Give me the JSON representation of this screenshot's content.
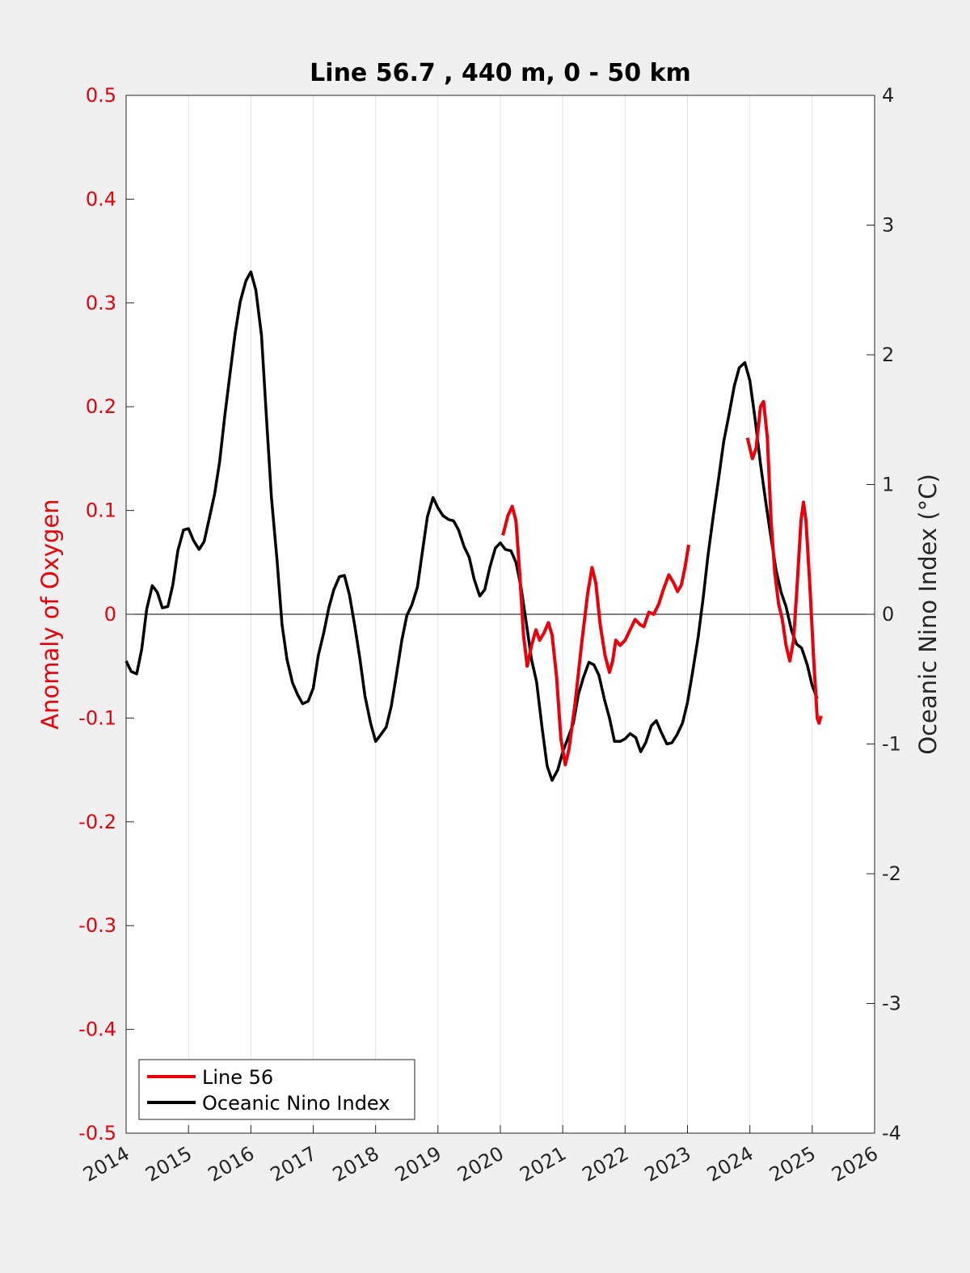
{
  "chart_data": {
    "type": "line",
    "title": "Line 56.7 , 440 m, 0 - 50 km",
    "ylabel_left": "Anomaly of Oxygen",
    "ylabel_right": "Oceanic Nino Index (°C)",
    "xlabel": "",
    "xlim": [
      2014,
      2026
    ],
    "xticks": [
      "2014",
      "2015",
      "2016",
      "2017",
      "2018",
      "2019",
      "2020",
      "2021",
      "2022",
      "2023",
      "2024",
      "2025",
      "2026"
    ],
    "ylim_left": [
      -0.5,
      0.5
    ],
    "yticks_left": [
      "0.5",
      "0.4",
      "0.3",
      "0.2",
      "0.1",
      "0",
      "-0.1",
      "-0.2",
      "-0.3",
      "-0.4",
      "-0.5"
    ],
    "ylim_right": [
      -4,
      4
    ],
    "yticks_right": [
      "4",
      "3",
      "2",
      "1",
      "0",
      "-1",
      "-2",
      "-3",
      "-4"
    ],
    "grid": "vertical",
    "legend_position": "bottom-left",
    "colors": {
      "line56": "#e8000b",
      "oni": "#000000",
      "left_axis": "#e8000b",
      "right_axis": "#262626",
      "background": "#f0f0f0",
      "plot": "#ffffff"
    },
    "series": [
      {
        "name": "Line 56",
        "axis": "left",
        "color": "#e8000b",
        "segments": [
          [
            [
              2020.04,
              0.076
            ],
            [
              2020.12,
              0.095
            ],
            [
              2020.19,
              0.104
            ],
            [
              2020.25,
              0.09
            ],
            [
              2020.31,
              0.04
            ],
            [
              2020.37,
              -0.02
            ],
            [
              2020.43,
              -0.05
            ],
            [
              2020.5,
              -0.03
            ],
            [
              2020.57,
              -0.015
            ],
            [
              2020.63,
              -0.025
            ],
            [
              2020.7,
              -0.018
            ],
            [
              2020.77,
              -0.008
            ],
            [
              2020.83,
              -0.02
            ],
            [
              2020.9,
              -0.06
            ],
            [
              2020.97,
              -0.12
            ],
            [
              2021.04,
              -0.145
            ],
            [
              2021.1,
              -0.13
            ],
            [
              2021.2,
              -0.085
            ],
            [
              2021.3,
              -0.03
            ],
            [
              2021.4,
              0.02
            ],
            [
              2021.47,
              0.045
            ],
            [
              2021.53,
              0.03
            ],
            [
              2021.6,
              -0.01
            ],
            [
              2021.68,
              -0.04
            ],
            [
              2021.75,
              -0.056
            ],
            [
              2021.8,
              -0.045
            ],
            [
              2021.85,
              -0.025
            ],
            [
              2021.92,
              -0.03
            ],
            [
              2022.0,
              -0.025
            ],
            [
              2022.08,
              -0.015
            ],
            [
              2022.16,
              -0.005
            ],
            [
              2022.24,
              -0.01
            ],
            [
              2022.3,
              -0.012
            ],
            [
              2022.38,
              0.002
            ],
            [
              2022.46,
              0.0
            ],
            [
              2022.54,
              0.01
            ],
            [
              2022.62,
              0.025
            ],
            [
              2022.7,
              0.038
            ],
            [
              2022.78,
              0.03
            ],
            [
              2022.84,
              0.022
            ],
            [
              2022.9,
              0.028
            ],
            [
              2022.96,
              0.045
            ],
            [
              2023.02,
              0.067
            ]
          ],
          [
            [
              2023.96,
              0.17
            ],
            [
              2024.04,
              0.15
            ],
            [
              2024.1,
              0.16
            ],
            [
              2024.17,
              0.2
            ],
            [
              2024.22,
              0.205
            ],
            [
              2024.28,
              0.17
            ],
            [
              2024.34,
              0.09
            ],
            [
              2024.4,
              0.04
            ],
            [
              2024.46,
              0.01
            ],
            [
              2024.52,
              -0.005
            ],
            [
              2024.58,
              -0.03
            ],
            [
              2024.64,
              -0.045
            ],
            [
              2024.7,
              -0.025
            ],
            [
              2024.76,
              0.03
            ],
            [
              2024.82,
              0.09
            ],
            [
              2024.86,
              0.108
            ],
            [
              2024.9,
              0.09
            ],
            [
              2024.96,
              0.03
            ],
            [
              2025.02,
              -0.04
            ],
            [
              2025.08,
              -0.1
            ],
            [
              2025.11,
              -0.105
            ],
            [
              2025.14,
              -0.098
            ]
          ]
        ]
      },
      {
        "name": "Oceanic Nino Index",
        "axis": "right",
        "color": "#000000",
        "points": [
          [
            2014.0,
            -0.36
          ],
          [
            2014.08,
            -0.44
          ],
          [
            2014.17,
            -0.46
          ],
          [
            2014.25,
            -0.27
          ],
          [
            2014.33,
            0.04
          ],
          [
            2014.42,
            0.22
          ],
          [
            2014.5,
            0.17
          ],
          [
            2014.58,
            0.05
          ],
          [
            2014.67,
            0.06
          ],
          [
            2014.75,
            0.23
          ],
          [
            2014.83,
            0.49
          ],
          [
            2014.92,
            0.65
          ],
          [
            2015.0,
            0.66
          ],
          [
            2015.08,
            0.57
          ],
          [
            2015.17,
            0.5
          ],
          [
            2015.25,
            0.56
          ],
          [
            2015.33,
            0.73
          ],
          [
            2015.42,
            0.93
          ],
          [
            2015.5,
            1.18
          ],
          [
            2015.58,
            1.52
          ],
          [
            2015.67,
            1.87
          ],
          [
            2015.75,
            2.17
          ],
          [
            2015.83,
            2.41
          ],
          [
            2015.92,
            2.57
          ],
          [
            2016.0,
            2.64
          ],
          [
            2016.08,
            2.5
          ],
          [
            2016.17,
            2.15
          ],
          [
            2016.25,
            1.52
          ],
          [
            2016.33,
            0.9
          ],
          [
            2016.42,
            0.42
          ],
          [
            2016.5,
            -0.08
          ],
          [
            2016.58,
            -0.35
          ],
          [
            2016.67,
            -0.53
          ],
          [
            2016.75,
            -0.62
          ],
          [
            2016.83,
            -0.69
          ],
          [
            2016.92,
            -0.67
          ],
          [
            2017.0,
            -0.57
          ],
          [
            2017.08,
            -0.32
          ],
          [
            2017.17,
            -0.14
          ],
          [
            2017.25,
            0.05
          ],
          [
            2017.33,
            0.19
          ],
          [
            2017.42,
            0.29
          ],
          [
            2017.5,
            0.3
          ],
          [
            2017.58,
            0.15
          ],
          [
            2017.67,
            -0.1
          ],
          [
            2017.75,
            -0.35
          ],
          [
            2017.83,
            -0.63
          ],
          [
            2017.92,
            -0.84
          ],
          [
            2018.0,
            -0.98
          ],
          [
            2018.08,
            -0.93
          ],
          [
            2018.17,
            -0.87
          ],
          [
            2018.25,
            -0.71
          ],
          [
            2018.33,
            -0.48
          ],
          [
            2018.42,
            -0.2
          ],
          [
            2018.5,
            -0.01
          ],
          [
            2018.58,
            0.07
          ],
          [
            2018.67,
            0.21
          ],
          [
            2018.75,
            0.48
          ],
          [
            2018.83,
            0.75
          ],
          [
            2018.92,
            0.9
          ],
          [
            2019.0,
            0.82
          ],
          [
            2019.08,
            0.76
          ],
          [
            2019.17,
            0.73
          ],
          [
            2019.25,
            0.72
          ],
          [
            2019.33,
            0.65
          ],
          [
            2019.42,
            0.52
          ],
          [
            2019.5,
            0.44
          ],
          [
            2019.58,
            0.27
          ],
          [
            2019.67,
            0.14
          ],
          [
            2019.75,
            0.19
          ],
          [
            2019.83,
            0.36
          ],
          [
            2019.92,
            0.51
          ],
          [
            2020.0,
            0.55
          ],
          [
            2020.08,
            0.5
          ],
          [
            2020.17,
            0.49
          ],
          [
            2020.25,
            0.4
          ],
          [
            2020.33,
            0.21
          ],
          [
            2020.42,
            -0.08
          ],
          [
            2020.5,
            -0.35
          ],
          [
            2020.58,
            -0.52
          ],
          [
            2020.67,
            -0.88
          ],
          [
            2020.75,
            -1.17
          ],
          [
            2020.83,
            -1.28
          ],
          [
            2020.92,
            -1.2
          ],
          [
            2021.0,
            -1.06
          ],
          [
            2021.08,
            -0.96
          ],
          [
            2021.17,
            -0.84
          ],
          [
            2021.25,
            -0.62
          ],
          [
            2021.33,
            -0.49
          ],
          [
            2021.42,
            -0.37
          ],
          [
            2021.5,
            -0.39
          ],
          [
            2021.58,
            -0.47
          ],
          [
            2021.67,
            -0.66
          ],
          [
            2021.75,
            -0.8
          ],
          [
            2021.83,
            -0.98
          ],
          [
            2021.92,
            -0.98
          ],
          [
            2022.0,
            -0.96
          ],
          [
            2022.08,
            -0.92
          ],
          [
            2022.17,
            -0.95
          ],
          [
            2022.25,
            -1.06
          ],
          [
            2022.33,
            -0.99
          ],
          [
            2022.42,
            -0.86
          ],
          [
            2022.5,
            -0.82
          ],
          [
            2022.58,
            -0.91
          ],
          [
            2022.67,
            -1.0
          ],
          [
            2022.75,
            -0.99
          ],
          [
            2022.83,
            -0.93
          ],
          [
            2022.92,
            -0.84
          ],
          [
            2023.0,
            -0.68
          ],
          [
            2023.08,
            -0.45
          ],
          [
            2023.17,
            -0.18
          ],
          [
            2023.25,
            0.12
          ],
          [
            2023.33,
            0.46
          ],
          [
            2023.42,
            0.78
          ],
          [
            2023.5,
            1.05
          ],
          [
            2023.58,
            1.33
          ],
          [
            2023.67,
            1.55
          ],
          [
            2023.75,
            1.76
          ],
          [
            2023.83,
            1.9
          ],
          [
            2023.92,
            1.94
          ],
          [
            2024.0,
            1.8
          ],
          [
            2024.08,
            1.52
          ],
          [
            2024.17,
            1.16
          ],
          [
            2024.25,
            0.88
          ],
          [
            2024.33,
            0.62
          ],
          [
            2024.42,
            0.34
          ],
          [
            2024.5,
            0.17
          ],
          [
            2024.58,
            0.06
          ],
          [
            2024.67,
            -0.13
          ],
          [
            2024.75,
            -0.23
          ],
          [
            2024.83,
            -0.26
          ],
          [
            2024.92,
            -0.39
          ],
          [
            2025.0,
            -0.55
          ],
          [
            2025.08,
            -0.65
          ]
        ]
      }
    ]
  }
}
